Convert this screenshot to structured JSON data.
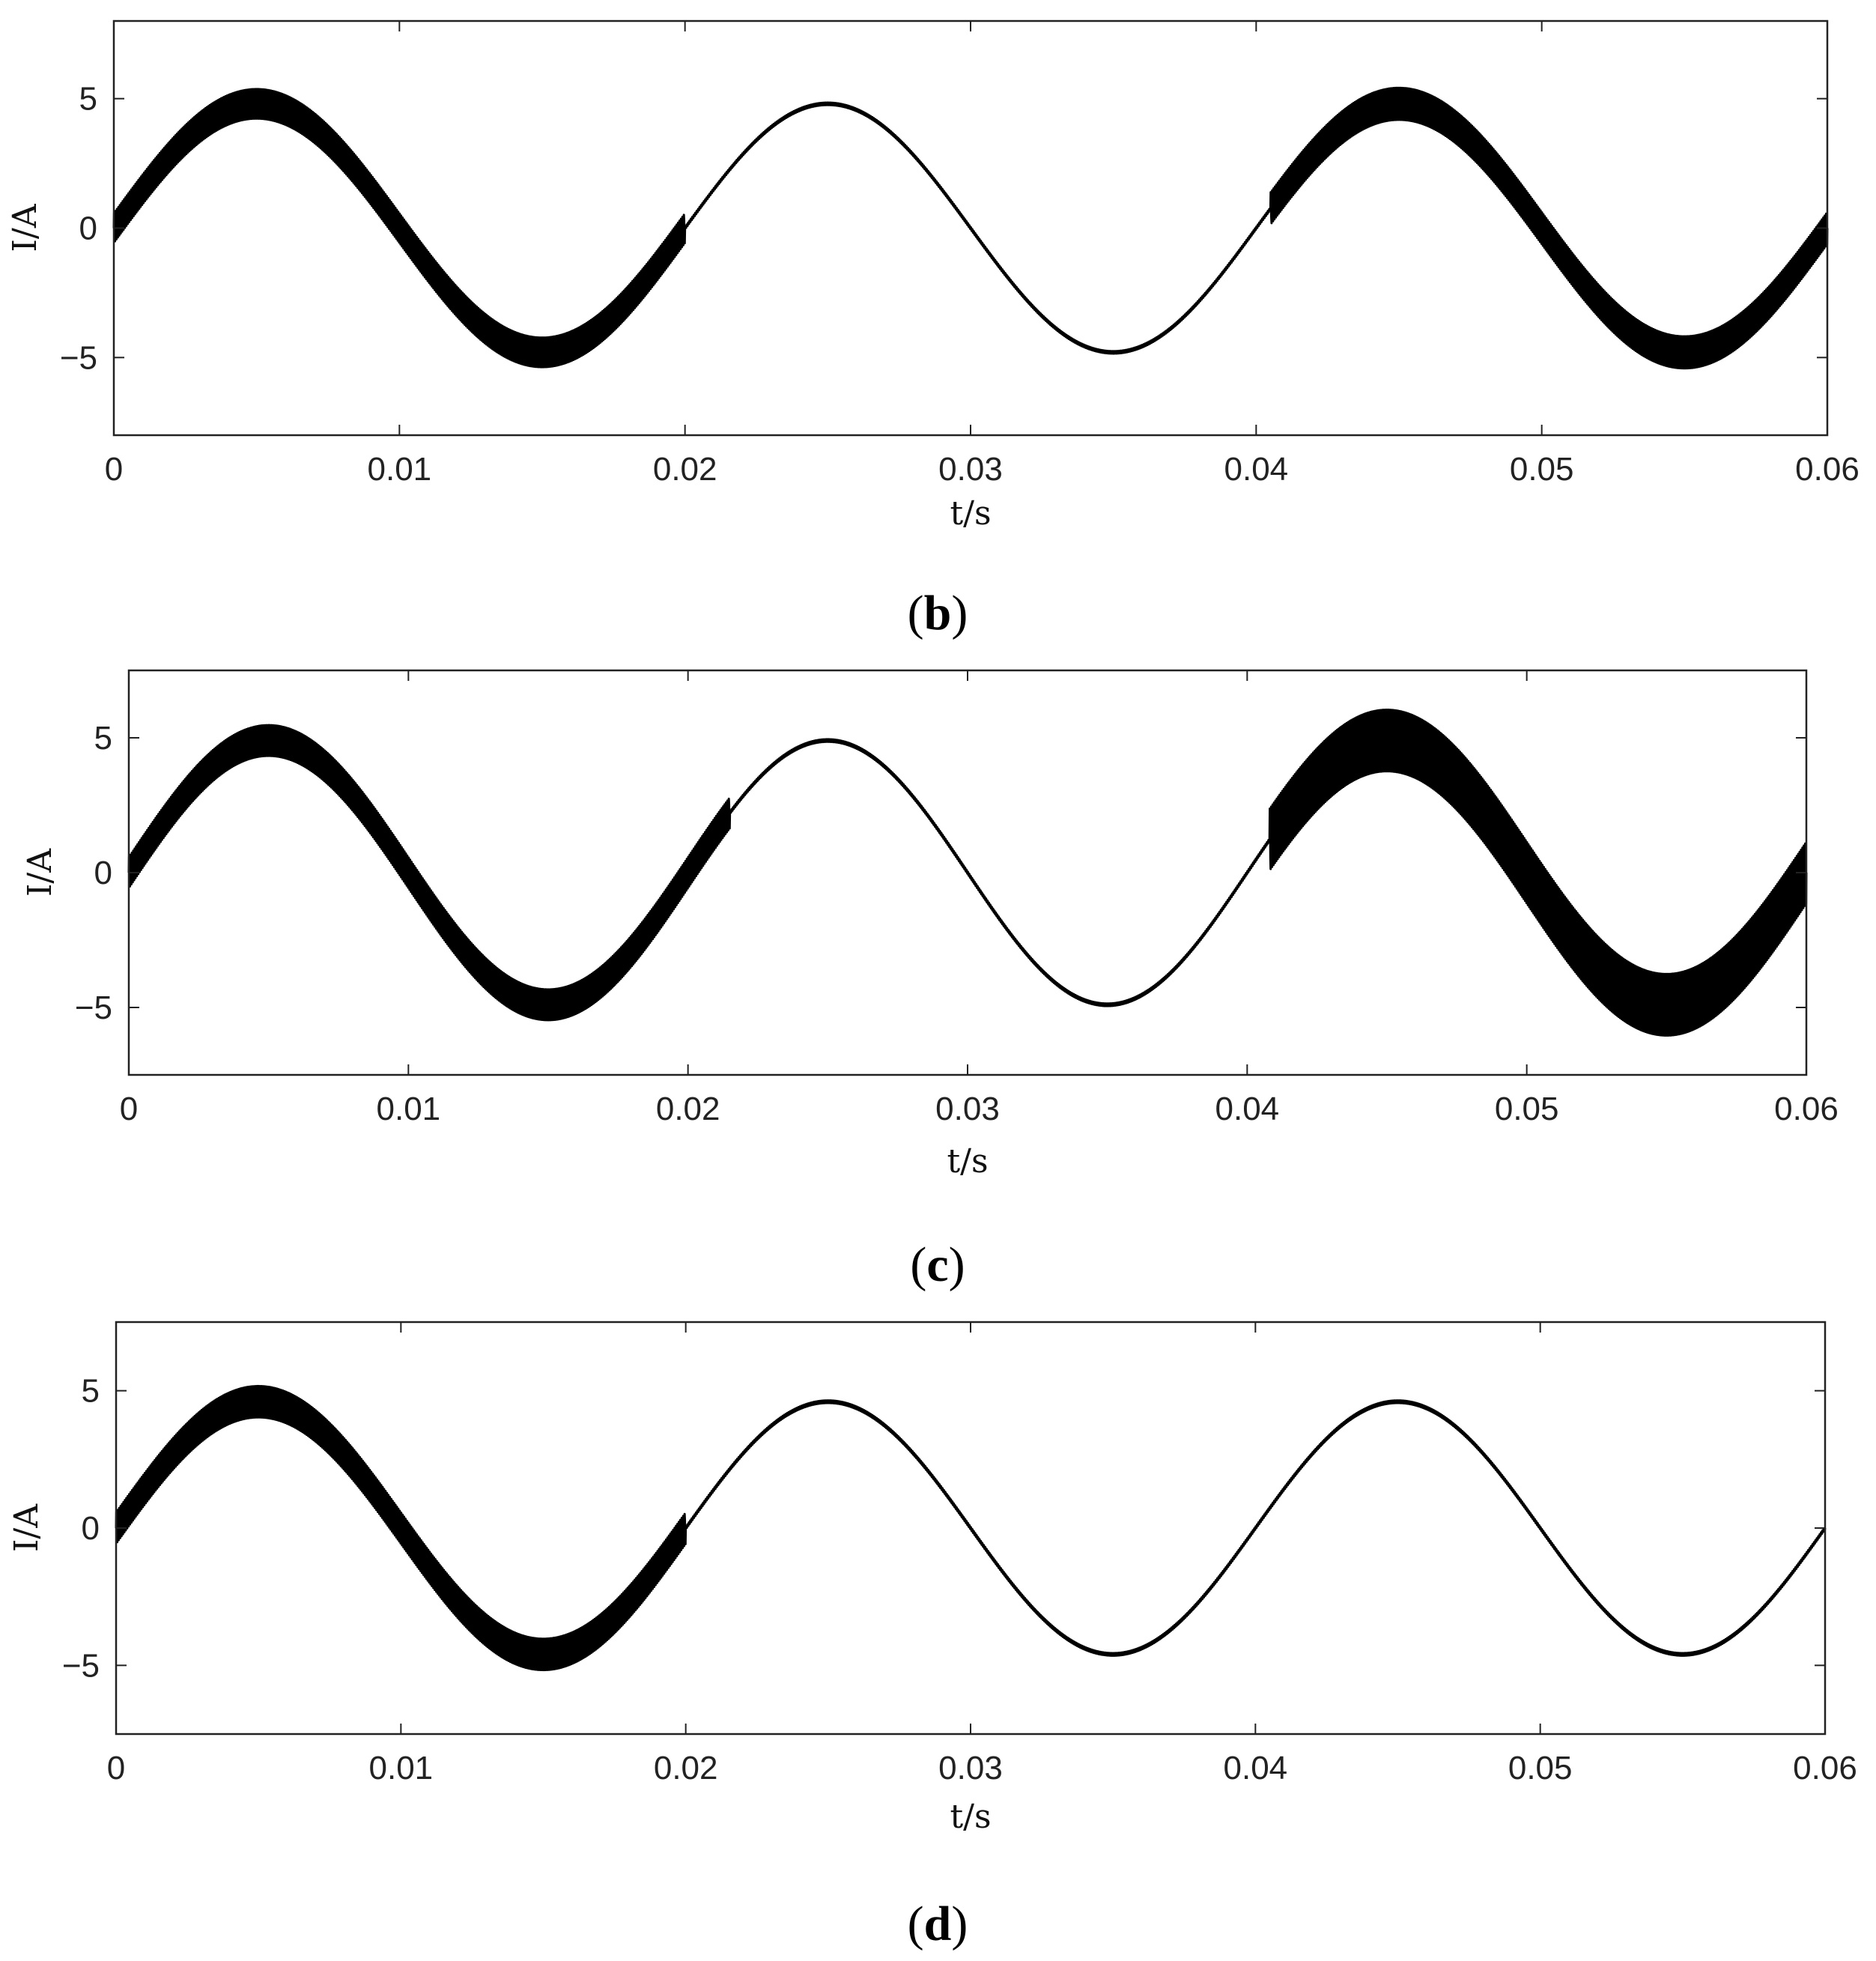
{
  "chart_data": [
    {
      "type": "line",
      "caption_letter": "b",
      "xlabel": "t/s",
      "ylabel": "I/A",
      "xlim": [
        0,
        0.06
      ],
      "ylim": [
        -8,
        8
      ],
      "xticks": [
        "0",
        "0.01",
        "0.02",
        "0.03",
        "0.04",
        "0.05",
        "0.06"
      ],
      "yticks": [
        "5",
        "0",
        "−5"
      ],
      "grid": false,
      "fundamental": {
        "amplitude": 4.8,
        "frequency_hz": 50
      },
      "ripple_segments": [
        {
          "from": 0,
          "to": 0.02,
          "ripple_amplitude": 0.6
        },
        {
          "from": 0.02,
          "to": 0.0405,
          "ripple_amplitude": 0.05
        },
        {
          "from": 0.0405,
          "to": 0.06,
          "ripple_amplitude": 0.65
        }
      ]
    },
    {
      "type": "line",
      "caption_letter": "c",
      "xlabel": "t/s",
      "ylabel": "I/A",
      "xlim": [
        0,
        0.06
      ],
      "ylim": [
        -7.5,
        7.5
      ],
      "xticks": [
        "0",
        "0.01",
        "0.02",
        "0.03",
        "0.04",
        "0.05",
        "0.06"
      ],
      "yticks": [
        "5",
        "0",
        "−5"
      ],
      "grid": false,
      "fundamental": {
        "amplitude": 4.9,
        "frequency_hz": 50
      },
      "ripple_segments": [
        {
          "from": 0,
          "to": 0.0215,
          "ripple_amplitude": 0.6
        },
        {
          "from": 0.0215,
          "to": 0.0408,
          "ripple_amplitude": 0.05
        },
        {
          "from": 0.0408,
          "to": 0.06,
          "ripple_amplitude": 1.2
        }
      ]
    },
    {
      "type": "line",
      "caption_letter": "d",
      "xlabel": "t/s",
      "ylabel": "I/A",
      "xlim": [
        0,
        0.06
      ],
      "ylim": [
        -7.5,
        7.5
      ],
      "xticks": [
        "0",
        "0.01",
        "0.02",
        "0.03",
        "0.04",
        "0.05",
        "0.06"
      ],
      "yticks": [
        "5",
        "0",
        "−5"
      ],
      "grid": false,
      "fundamental": {
        "amplitude": 4.6,
        "frequency_hz": 50
      },
      "ripple_segments": [
        {
          "from": 0,
          "to": 0.02,
          "ripple_amplitude": 0.6
        },
        {
          "from": 0.02,
          "to": 0.06,
          "ripple_amplitude": 0.05
        }
      ]
    }
  ]
}
